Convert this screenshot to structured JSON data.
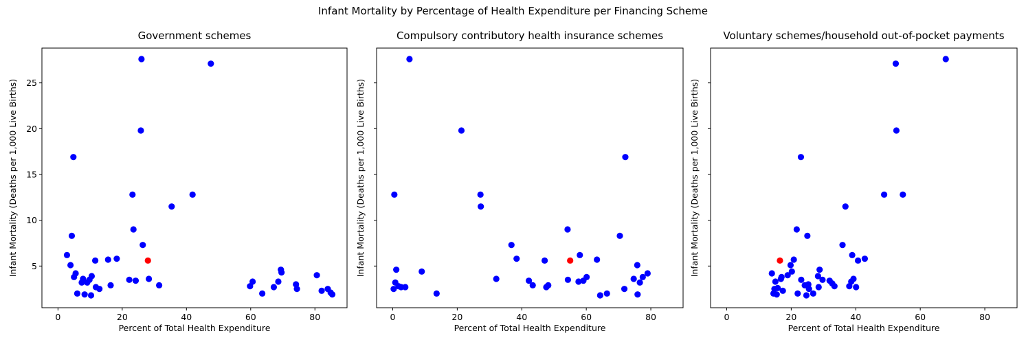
{
  "figure": {
    "suptitle": "Infant Mortality by Percentage of Health Expenditure per Financing Scheme"
  },
  "chart_data": [
    {
      "type": "scatter",
      "title": "Government schemes",
      "xlabel": "Percent of Total Health Expenditure",
      "ylabel": "Infant Mortality (Deaths per 1,000 Live Births)",
      "xlim": [
        -5,
        90
      ],
      "ylim": [
        0.45,
        28.8
      ],
      "xticks": [
        0,
        20,
        40,
        60,
        80
      ],
      "yticks": [
        5,
        10,
        15,
        20,
        25
      ],
      "show_yticklabels": true,
      "colors": {
        "default": "#0000ff",
        "highlight": "#ff0000"
      },
      "points": [
        {
          "x": 2.8,
          "y": 6.2
        },
        {
          "x": 3.9,
          "y": 5.1
        },
        {
          "x": 4.3,
          "y": 8.3
        },
        {
          "x": 4.8,
          "y": 16.9
        },
        {
          "x": 5.0,
          "y": 3.8
        },
        {
          "x": 5.5,
          "y": 4.2
        },
        {
          "x": 6.0,
          "y": 2.0
        },
        {
          "x": 7.4,
          "y": 3.2
        },
        {
          "x": 7.8,
          "y": 3.6
        },
        {
          "x": 8.3,
          "y": 1.9
        },
        {
          "x": 9.1,
          "y": 3.2
        },
        {
          "x": 9.8,
          "y": 3.5
        },
        {
          "x": 10.3,
          "y": 1.8
        },
        {
          "x": 10.5,
          "y": 3.9
        },
        {
          "x": 11.6,
          "y": 5.6
        },
        {
          "x": 11.8,
          "y": 2.7
        },
        {
          "x": 12.9,
          "y": 2.5
        },
        {
          "x": 15.6,
          "y": 5.7
        },
        {
          "x": 16.4,
          "y": 2.9
        },
        {
          "x": 18.3,
          "y": 5.8
        },
        {
          "x": 22.2,
          "y": 3.5
        },
        {
          "x": 23.2,
          "y": 12.8
        },
        {
          "x": 23.5,
          "y": 9.0
        },
        {
          "x": 24.2,
          "y": 3.4
        },
        {
          "x": 25.8,
          "y": 19.8
        },
        {
          "x": 26.0,
          "y": 27.6
        },
        {
          "x": 26.4,
          "y": 7.3
        },
        {
          "x": 28.3,
          "y": 3.6
        },
        {
          "x": 31.5,
          "y": 2.9
        },
        {
          "x": 35.4,
          "y": 11.5
        },
        {
          "x": 41.9,
          "y": 12.8
        },
        {
          "x": 47.6,
          "y": 27.1
        },
        {
          "x": 59.8,
          "y": 2.8
        },
        {
          "x": 60.6,
          "y": 3.3
        },
        {
          "x": 63.6,
          "y": 2.0
        },
        {
          "x": 67.2,
          "y": 2.7
        },
        {
          "x": 68.6,
          "y": 3.3
        },
        {
          "x": 69.4,
          "y": 4.6
        },
        {
          "x": 69.6,
          "y": 4.3
        },
        {
          "x": 74.1,
          "y": 3.0
        },
        {
          "x": 74.4,
          "y": 2.5
        },
        {
          "x": 80.6,
          "y": 4.0
        },
        {
          "x": 82.1,
          "y": 2.3
        },
        {
          "x": 84.0,
          "y": 2.5
        },
        {
          "x": 84.9,
          "y": 2.1
        },
        {
          "x": 85.4,
          "y": 1.9
        },
        {
          "x": 28.0,
          "y": 5.6,
          "highlight": true
        }
      ]
    },
    {
      "type": "scatter",
      "title": "Compulsory contributory health insurance schemes",
      "xlabel": "Percent of Total Health Expenditure",
      "ylabel": "Infant Mortality (Deaths per 1,000 Live Births)",
      "xlim": [
        -5,
        90
      ],
      "ylim": [
        0.45,
        28.8
      ],
      "xticks": [
        0,
        20,
        40,
        60,
        80
      ],
      "yticks": [
        5,
        10,
        15,
        20,
        25
      ],
      "show_yticklabels": false,
      "colors": {
        "default": "#0000ff",
        "highlight": "#ff0000"
      },
      "points": [
        {
          "x": 0.3,
          "y": 2.5
        },
        {
          "x": 0.5,
          "y": 12.8
        },
        {
          "x": 0.8,
          "y": 3.2
        },
        {
          "x": 1.1,
          "y": 4.6
        },
        {
          "x": 1.8,
          "y": 2.8
        },
        {
          "x": 2.6,
          "y": 2.7
        },
        {
          "x": 3.9,
          "y": 2.7
        },
        {
          "x": 5.2,
          "y": 27.6
        },
        {
          "x": 9.0,
          "y": 4.4
        },
        {
          "x": 13.6,
          "y": 2.0
        },
        {
          "x": 21.3,
          "y": 19.8
        },
        {
          "x": 27.2,
          "y": 12.8
        },
        {
          "x": 27.3,
          "y": 11.5
        },
        {
          "x": 32.1,
          "y": 3.6
        },
        {
          "x": 36.8,
          "y": 7.3
        },
        {
          "x": 38.4,
          "y": 5.8
        },
        {
          "x": 42.2,
          "y": 3.4
        },
        {
          "x": 43.4,
          "y": 2.9
        },
        {
          "x": 47.1,
          "y": 5.6
        },
        {
          "x": 47.6,
          "y": 2.7
        },
        {
          "x": 48.2,
          "y": 2.9
        },
        {
          "x": 54.2,
          "y": 9.0
        },
        {
          "x": 54.3,
          "y": 3.5
        },
        {
          "x": 57.6,
          "y": 3.3
        },
        {
          "x": 58.0,
          "y": 6.2
        },
        {
          "x": 59.1,
          "y": 3.4
        },
        {
          "x": 60.1,
          "y": 3.8
        },
        {
          "x": 63.3,
          "y": 5.7
        },
        {
          "x": 64.3,
          "y": 1.8
        },
        {
          "x": 66.4,
          "y": 2.0
        },
        {
          "x": 70.4,
          "y": 8.3
        },
        {
          "x": 71.8,
          "y": 2.5
        },
        {
          "x": 72.1,
          "y": 16.9
        },
        {
          "x": 74.7,
          "y": 3.6
        },
        {
          "x": 75.8,
          "y": 5.1
        },
        {
          "x": 75.9,
          "y": 1.9
        },
        {
          "x": 76.6,
          "y": 3.2
        },
        {
          "x": 77.5,
          "y": 3.8
        },
        {
          "x": 79.0,
          "y": 4.2
        },
        {
          "x": 55.0,
          "y": 5.6,
          "highlight": true
        }
      ]
    },
    {
      "type": "scatter",
      "title": "Voluntary schemes/household out-of-pocket payments",
      "xlabel": "Percent of Total Health Expenditure",
      "ylabel": "Infant Mortality (Deaths per 1,000 Live Births)",
      "xlim": [
        -5,
        90
      ],
      "ylim": [
        0.45,
        28.8
      ],
      "xticks": [
        0,
        20,
        40,
        60,
        80
      ],
      "yticks": [
        5,
        10,
        15,
        20,
        25
      ],
      "show_yticklabels": false,
      "colors": {
        "default": "#0000ff",
        "highlight": "#ff0000"
      },
      "points": [
        {
          "x": 14.0,
          "y": 4.2
        },
        {
          "x": 14.5,
          "y": 2.0
        },
        {
          "x": 14.8,
          "y": 2.5
        },
        {
          "x": 15.1,
          "y": 3.3
        },
        {
          "x": 15.5,
          "y": 1.9
        },
        {
          "x": 15.8,
          "y": 2.6
        },
        {
          "x": 16.8,
          "y": 3.6
        },
        {
          "x": 17.0,
          "y": 3.8
        },
        {
          "x": 17.4,
          "y": 2.3
        },
        {
          "x": 18.9,
          "y": 4.0
        },
        {
          "x": 19.8,
          "y": 5.1
        },
        {
          "x": 20.2,
          "y": 4.4
        },
        {
          "x": 20.8,
          "y": 5.7
        },
        {
          "x": 21.7,
          "y": 9.0
        },
        {
          "x": 22.0,
          "y": 2.0
        },
        {
          "x": 23.0,
          "y": 16.9
        },
        {
          "x": 23.1,
          "y": 3.5
        },
        {
          "x": 24.2,
          "y": 2.9
        },
        {
          "x": 24.7,
          "y": 1.8
        },
        {
          "x": 25.0,
          "y": 8.3
        },
        {
          "x": 25.3,
          "y": 3.0
        },
        {
          "x": 25.5,
          "y": 2.5
        },
        {
          "x": 26.8,
          "y": 2.0
        },
        {
          "x": 28.3,
          "y": 3.9
        },
        {
          "x": 28.5,
          "y": 2.7
        },
        {
          "x": 28.8,
          "y": 4.6
        },
        {
          "x": 29.7,
          "y": 3.5
        },
        {
          "x": 31.9,
          "y": 3.4
        },
        {
          "x": 32.7,
          "y": 3.1
        },
        {
          "x": 33.4,
          "y": 2.8
        },
        {
          "x": 35.9,
          "y": 7.3
        },
        {
          "x": 36.8,
          "y": 11.5
        },
        {
          "x": 38.0,
          "y": 2.8
        },
        {
          "x": 38.6,
          "y": 3.3
        },
        {
          "x": 38.9,
          "y": 6.2
        },
        {
          "x": 39.3,
          "y": 3.6
        },
        {
          "x": 40.1,
          "y": 2.7
        },
        {
          "x": 40.7,
          "y": 5.6
        },
        {
          "x": 42.8,
          "y": 5.8
        },
        {
          "x": 48.8,
          "y": 12.8
        },
        {
          "x": 52.4,
          "y": 27.1
        },
        {
          "x": 52.6,
          "y": 19.8
        },
        {
          "x": 54.6,
          "y": 12.8
        },
        {
          "x": 67.9,
          "y": 27.6
        },
        {
          "x": 16.5,
          "y": 5.6,
          "highlight": true
        }
      ]
    }
  ]
}
